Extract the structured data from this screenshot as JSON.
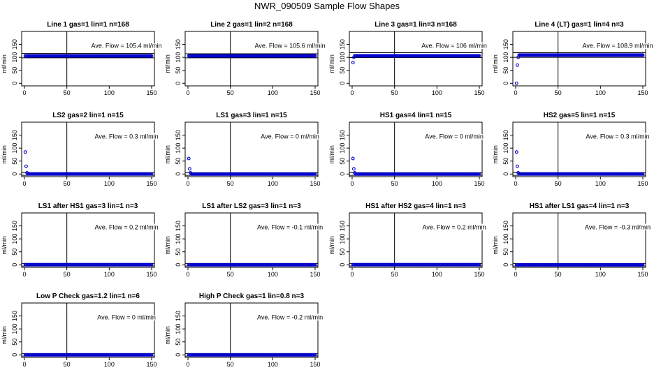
{
  "figure": {
    "title": "NWR_090509  Sample Flow Shapes"
  },
  "colors": {
    "points": "#0000cc",
    "axes": "#000000",
    "background": "#ffffff"
  },
  "chart_data": [
    {
      "type": "scatter",
      "title": "Line 1 gas=1 lin=1 n=168",
      "ylabel": "ml/min",
      "xlim": [
        0,
        150
      ],
      "ylim": [
        -10,
        200
      ],
      "xticks": [
        "0",
        "50",
        "100",
        "150"
      ],
      "yticks": [
        "0",
        "50",
        "100",
        "150"
      ],
      "annotation": "Ave. Flow =  105.4  ml/min",
      "vline_x": 50,
      "hlines": [
        98,
        115
      ],
      "start_points": [],
      "steady_value": 105.4
    },
    {
      "type": "scatter",
      "title": "Line 2 gas=1 lin=2 n=168",
      "ylabel": "ml/min",
      "xlim": [
        0,
        150
      ],
      "ylim": [
        -10,
        200
      ],
      "xticks": [
        "0",
        "50",
        "100",
        "150"
      ],
      "yticks": [
        "0",
        "50",
        "100",
        "150"
      ],
      "annotation": "Ave. Flow =  105.6  ml/min",
      "vline_x": 50,
      "hlines": [
        98,
        114
      ],
      "start_points": [],
      "steady_value": 105.6
    },
    {
      "type": "scatter",
      "title": "Line 3 gas=1 lin=3 n=168",
      "ylabel": "ml/min",
      "xlim": [
        0,
        150
      ],
      "ylim": [
        -10,
        200
      ],
      "xticks": [
        "0",
        "50",
        "100",
        "150"
      ],
      "yticks": [
        "0",
        "50",
        "100",
        "150"
      ],
      "annotation": "Ave. Flow =  106  ml/min",
      "vline_x": 50,
      "hlines": [
        99,
        118
      ],
      "start_points": [
        [
          1,
          80
        ],
        [
          2,
          100
        ]
      ],
      "steady_value": 106
    },
    {
      "type": "scatter",
      "title": "Line 4 (LT) gas=1 lin=4 n=3",
      "ylabel": "ml/min",
      "xlim": [
        0,
        150
      ],
      "ylim": [
        -10,
        200
      ],
      "xticks": [
        "0",
        "50",
        "100",
        "150"
      ],
      "yticks": [
        "0",
        "50",
        "100",
        "150"
      ],
      "annotation": "Ave. Flow =  108.9  ml/min",
      "vline_x": 50,
      "hlines": [
        100,
        118
      ],
      "start_points": [
        [
          1,
          0
        ],
        [
          2,
          70
        ],
        [
          3,
          100
        ]
      ],
      "steady_value": 108.9
    },
    {
      "type": "scatter",
      "title": "LS2 gas=2 lin=1 n=15",
      "ylabel": "ml/min",
      "xlim": [
        0,
        150
      ],
      "ylim": [
        -10,
        200
      ],
      "xticks": [
        "0",
        "50",
        "100",
        "150"
      ],
      "yticks": [
        "0",
        "50",
        "100",
        "150"
      ],
      "annotation": "Ave. Flow =  0.3  ml/min",
      "vline_x": 50,
      "hlines": [
        -5,
        5
      ],
      "start_points": [
        [
          1,
          85
        ],
        [
          2,
          30
        ],
        [
          3,
          5
        ]
      ],
      "steady_value": 0.3
    },
    {
      "type": "scatter",
      "title": "LS1 gas=3 lin=1 n=15",
      "ylabel": "ml/min",
      "xlim": [
        0,
        150
      ],
      "ylim": [
        -10,
        200
      ],
      "xticks": [
        "0",
        "50",
        "100",
        "150"
      ],
      "yticks": [
        "0",
        "50",
        "100",
        "150"
      ],
      "annotation": "Ave. Flow =  0  ml/min",
      "vline_x": 50,
      "hlines": [
        -5,
        5
      ],
      "start_points": [
        [
          1,
          60
        ],
        [
          2,
          20
        ],
        [
          3,
          5
        ]
      ],
      "steady_value": 0
    },
    {
      "type": "scatter",
      "title": "HS1 gas=4 lin=1 n=15",
      "ylabel": "ml/min",
      "xlim": [
        0,
        150
      ],
      "ylim": [
        -10,
        200
      ],
      "xticks": [
        "0",
        "50",
        "100",
        "150"
      ],
      "yticks": [
        "0",
        "50",
        "100",
        "150"
      ],
      "annotation": "Ave. Flow =  0  ml/min",
      "vline_x": 50,
      "hlines": [
        -5,
        5
      ],
      "start_points": [
        [
          1,
          60
        ],
        [
          2,
          20
        ],
        [
          3,
          5
        ]
      ],
      "steady_value": 0
    },
    {
      "type": "scatter",
      "title": "HS2 gas=5 lin=1 n=15",
      "ylabel": "ml/min",
      "xlim": [
        0,
        150
      ],
      "ylim": [
        -10,
        200
      ],
      "xticks": [
        "0",
        "50",
        "100",
        "150"
      ],
      "yticks": [
        "0",
        "50",
        "100",
        "150"
      ],
      "annotation": "Ave. Flow =  0.3  ml/min",
      "vline_x": 50,
      "hlines": [
        -5,
        5
      ],
      "start_points": [
        [
          1,
          85
        ],
        [
          2,
          30
        ],
        [
          3,
          5
        ]
      ],
      "steady_value": 0.3
    },
    {
      "type": "scatter",
      "title": "LS1 after HS1 gas=3 lin=1 n=3",
      "ylabel": "ml/min",
      "xlim": [
        0,
        150
      ],
      "ylim": [
        -10,
        200
      ],
      "xticks": [
        "0",
        "50",
        "100",
        "150"
      ],
      "yticks": [
        "0",
        "50",
        "100",
        "150"
      ],
      "annotation": "Ave. Flow =  0.2  ml/min",
      "vline_x": 50,
      "hlines": [
        -5,
        5
      ],
      "start_points": [],
      "steady_value": 0.2
    },
    {
      "type": "scatter",
      "title": "LS1 after LS2 gas=3 lin=1 n=3",
      "ylabel": "ml/min",
      "xlim": [
        0,
        150
      ],
      "ylim": [
        -10,
        200
      ],
      "xticks": [
        "0",
        "50",
        "100",
        "150"
      ],
      "yticks": [
        "0",
        "50",
        "100",
        "150"
      ],
      "annotation": "Ave. Flow =  -0.1  ml/min",
      "vline_x": 50,
      "hlines": [
        -5,
        5
      ],
      "start_points": [],
      "steady_value": -0.1
    },
    {
      "type": "scatter",
      "title": "HS1 after HS2 gas=4 lin=1 n=3",
      "ylabel": "ml/min",
      "xlim": [
        0,
        150
      ],
      "ylim": [
        -10,
        200
      ],
      "xticks": [
        "0",
        "50",
        "100",
        "150"
      ],
      "yticks": [
        "0",
        "50",
        "100",
        "150"
      ],
      "annotation": "Ave. Flow =  0.2  ml/min",
      "vline_x": 50,
      "hlines": [
        -5,
        5
      ],
      "start_points": [],
      "steady_value": 0.2
    },
    {
      "type": "scatter",
      "title": "HS1 after LS1 gas=4 lin=1 n=3",
      "ylabel": "ml/min",
      "xlim": [
        0,
        150
      ],
      "ylim": [
        -10,
        200
      ],
      "xticks": [
        "0",
        "50",
        "100",
        "150"
      ],
      "yticks": [
        "0",
        "50",
        "100",
        "150"
      ],
      "annotation": "Ave. Flow =  -0.3  ml/min",
      "vline_x": 50,
      "hlines": [
        -5,
        5
      ],
      "start_points": [],
      "steady_value": -0.3
    },
    {
      "type": "scatter",
      "title": "Low P Check gas=1.2 lin=1 n=6",
      "ylabel": "ml/min",
      "xlim": [
        0,
        150
      ],
      "ylim": [
        -10,
        200
      ],
      "xticks": [
        "0",
        "50",
        "100",
        "150"
      ],
      "yticks": [
        "0",
        "50",
        "100",
        "150"
      ],
      "annotation": "Ave. Flow =  0  ml/min",
      "vline_x": 50,
      "hlines": [
        -5,
        5
      ],
      "start_points": [],
      "steady_value": 0
    },
    {
      "type": "scatter",
      "title": "High P Check gas=1 lin=0.8 n=3",
      "ylabel": "ml/min",
      "xlim": [
        0,
        150
      ],
      "ylim": [
        -10,
        200
      ],
      "xticks": [
        "0",
        "50",
        "100",
        "150"
      ],
      "yticks": [
        "0",
        "50",
        "100",
        "150"
      ],
      "annotation": "Ave. Flow =  -0.2  ml/min",
      "vline_x": 50,
      "hlines": [
        -5,
        5
      ],
      "start_points": [],
      "steady_value": -0.2
    }
  ]
}
